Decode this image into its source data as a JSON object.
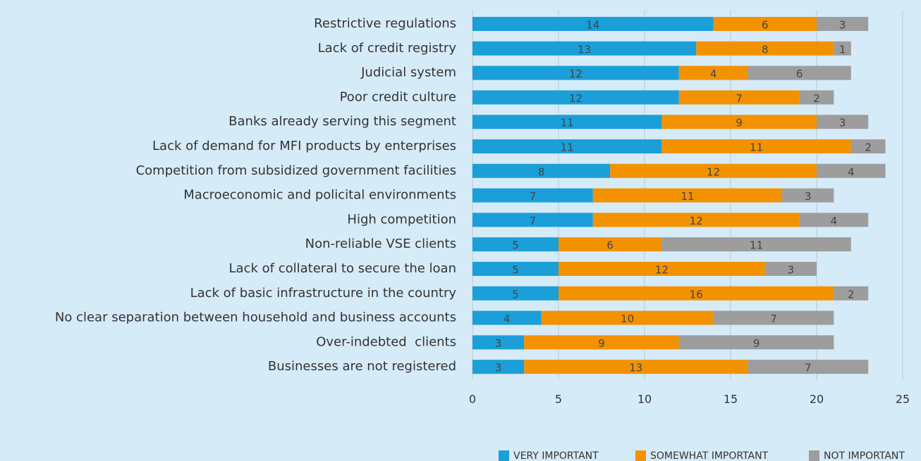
{
  "chart_data": {
    "type": "stacked_barh",
    "categories": [
      "Restrictive regulations",
      "Lack of credit registry",
      "Judicial system",
      "Poor credit culture",
      "Banks already serving this segment",
      "Lack of demand for MFI products by enterprises",
      "Competition from subsidized government facilities",
      "Macroeconomic and policital environments",
      "High competition",
      "Non-reliable VSE clients",
      "Lack of collateral to secure the loan",
      "Lack of basic infrastructure in the country",
      "No clear separation between household and business accounts",
      "Over-indebted  clients",
      "Businesses are not registered"
    ],
    "series": [
      {
        "name": "VERY IMPORTANT",
        "color": "#1a9fd9",
        "values": [
          14,
          13,
          12,
          12,
          11,
          11,
          8,
          7,
          7,
          5,
          5,
          5,
          4,
          3,
          3
        ]
      },
      {
        "name": "SOMEWHAT IMPORTANT",
        "color": "#f39200",
        "values": [
          6,
          8,
          4,
          7,
          9,
          11,
          12,
          11,
          12,
          6,
          12,
          16,
          10,
          9,
          13
        ]
      },
      {
        "name": "NOT IMPORTANT",
        "color": "#9d9d9d",
        "values": [
          3,
          1,
          6,
          2,
          3,
          2,
          4,
          3,
          4,
          11,
          3,
          2,
          7,
          9,
          7
        ]
      }
    ],
    "xlim": [
      0,
      25
    ],
    "xticks": [
      0,
      5,
      10,
      15,
      20,
      25
    ],
    "grid": true,
    "legend": "bottom-right"
  }
}
